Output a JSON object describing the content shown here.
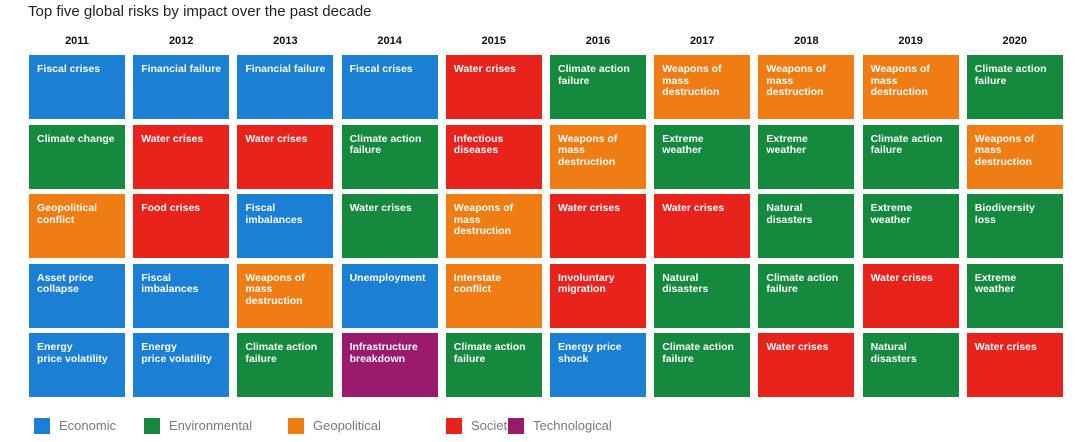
{
  "chart_data": {
    "type": "table",
    "title": "Top five global risks by impact over the past decade",
    "columns": [
      "2011",
      "2012",
      "2013",
      "2014",
      "2015",
      "2016",
      "2017",
      "2018",
      "2019",
      "2020"
    ],
    "rows": [
      [
        {
          "label": "Fiscal crises",
          "category": "Economic"
        },
        {
          "label": "Financial failure",
          "category": "Economic"
        },
        {
          "label": "Financial failure",
          "category": "Economic"
        },
        {
          "label": "Fiscal crises",
          "category": "Economic"
        },
        {
          "label": "Water crises",
          "category": "Societal"
        },
        {
          "label": "Climate action\nfailure",
          "category": "Environmental"
        },
        {
          "label": "Weapons of\nmass\ndestruction",
          "category": "Geopolitical"
        },
        {
          "label": "Weapons of\nmass\ndestruction",
          "category": "Geopolitical"
        },
        {
          "label": "Weapons of\nmass\ndestruction",
          "category": "Geopolitical"
        },
        {
          "label": "Climate action\nfailure",
          "category": "Environmental"
        }
      ],
      [
        {
          "label": "Climate change",
          "category": "Environmental"
        },
        {
          "label": "Water crises",
          "category": "Societal"
        },
        {
          "label": "Water crises",
          "category": "Societal"
        },
        {
          "label": "Climate action\nfailure",
          "category": "Environmental"
        },
        {
          "label": "Infectious\ndiseases",
          "category": "Societal"
        },
        {
          "label": "Weapons of\nmass\ndestruction",
          "category": "Geopolitical"
        },
        {
          "label": "Extreme\nweather",
          "category": "Environmental"
        },
        {
          "label": "Extreme\nweather",
          "category": "Environmental"
        },
        {
          "label": "Climate action\nfailure",
          "category": "Environmental"
        },
        {
          "label": "Weapons of\nmass\ndestruction",
          "category": "Geopolitical"
        }
      ],
      [
        {
          "label": "Geopolitical\nconflict",
          "category": "Geopolitical"
        },
        {
          "label": "Food crises",
          "category": "Societal"
        },
        {
          "label": "Fiscal\nimbalances",
          "category": "Economic"
        },
        {
          "label": "Water crises",
          "category": "Environmental"
        },
        {
          "label": "Weapons of\nmass\ndestruction",
          "category": "Geopolitical"
        },
        {
          "label": "Water crises",
          "category": "Societal"
        },
        {
          "label": "Water crises",
          "category": "Societal"
        },
        {
          "label": "Natural\ndisasters",
          "category": "Environmental"
        },
        {
          "label": "Extreme\nweather",
          "category": "Environmental"
        },
        {
          "label": "Biodiversity loss",
          "category": "Environmental"
        }
      ],
      [
        {
          "label": "Asset price\ncollapse",
          "category": "Economic"
        },
        {
          "label": "Fiscal\nimbalances",
          "category": "Economic"
        },
        {
          "label": "Weapons of\nmass\ndestruction",
          "category": "Geopolitical"
        },
        {
          "label": "Unemployment",
          "category": "Economic"
        },
        {
          "label": "Interstate\nconflict",
          "category": "Geopolitical"
        },
        {
          "label": "Involuntary\nmigration",
          "category": "Societal"
        },
        {
          "label": "Natural\ndisasters",
          "category": "Environmental"
        },
        {
          "label": "Climate action\nfailure",
          "category": "Environmental"
        },
        {
          "label": "Water crises",
          "category": "Societal"
        },
        {
          "label": "Extreme\nweather",
          "category": "Environmental"
        }
      ],
      [
        {
          "label": "Energy\nprice volatility",
          "category": "Economic"
        },
        {
          "label": "Energy\nprice volatility",
          "category": "Economic"
        },
        {
          "label": "Climate action\nfailure",
          "category": "Environmental"
        },
        {
          "label": "Infrastructure\nbreakdown",
          "category": "Technological"
        },
        {
          "label": "Climate action\nfailure",
          "category": "Environmental"
        },
        {
          "label": "Energy price\nshock",
          "category": "Economic"
        },
        {
          "label": "Climate action\nfailure",
          "category": "Environmental"
        },
        {
          "label": "Water crises",
          "category": "Societal"
        },
        {
          "label": "Natural\ndisasters",
          "category": "Environmental"
        },
        {
          "label": "Water crises",
          "category": "Societal"
        }
      ]
    ],
    "legend": [
      {
        "name": "Economic",
        "color": "#1b7fd4"
      },
      {
        "name": "Environmental",
        "color": "#158a3e"
      },
      {
        "name": "Geopolitical",
        "color": "#ef7d14"
      },
      {
        "name": "Societal",
        "color": "#e8231c"
      },
      {
        "name": "Technological",
        "color": "#9a1a6e"
      }
    ],
    "legend_position": "bottom-left"
  }
}
